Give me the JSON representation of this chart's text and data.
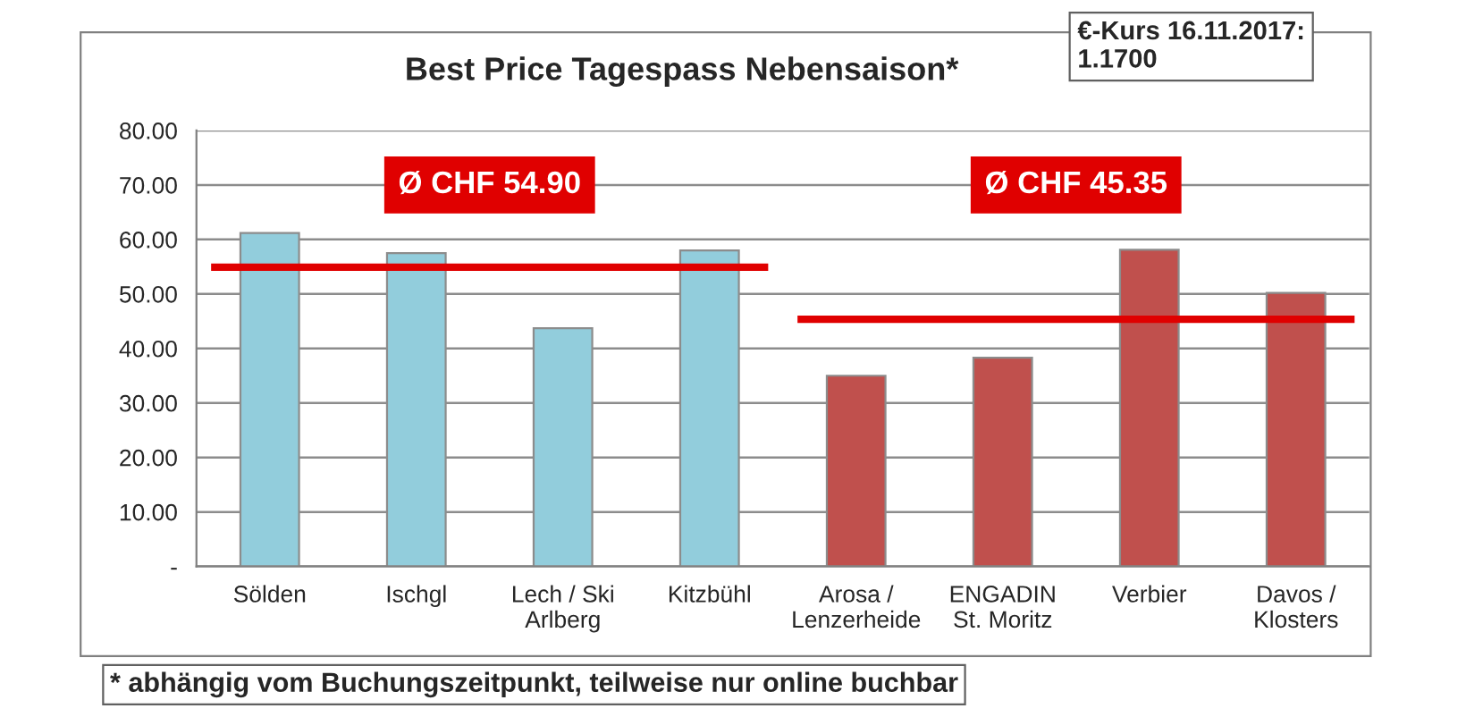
{
  "chart_data": {
    "type": "bar",
    "title": "Best Price Tagespass Nebensaison*",
    "categories": [
      "Sölden",
      "Ischgl",
      "Lech / Ski\nArlberg",
      "Kitzbühl",
      "Arosa /\nLenzerheide",
      "ENGADIN\nSt. Moritz",
      "Verbier",
      "Davos /\nKlosters"
    ],
    "values": [
      61.2,
      57.5,
      43.7,
      58.0,
      35.0,
      38.3,
      58.1,
      50.2
    ],
    "colors": [
      "#92cddc",
      "#92cddc",
      "#92cddc",
      "#92cddc",
      "#c0504d",
      "#c0504d",
      "#c0504d",
      "#c0504d"
    ],
    "ylim": [
      0,
      80
    ],
    "yticks": [
      {
        "value": 0,
        "label": "-"
      },
      {
        "value": 10,
        "label": "10.00"
      },
      {
        "value": 20,
        "label": "20.00"
      },
      {
        "value": 30,
        "label": "30.00"
      },
      {
        "value": 40,
        "label": "40.00"
      },
      {
        "value": 50,
        "label": "50.00"
      },
      {
        "value": 60,
        "label": "60.00"
      },
      {
        "value": 70,
        "label": "70.00"
      },
      {
        "value": 80,
        "label": "80.00"
      }
    ],
    "grid": "y",
    "legend": false,
    "ref_lines": [
      {
        "axis": "y",
        "value": 54.9,
        "color": "#e00000"
      },
      {
        "axis": "y",
        "value": 45.35,
        "color": "#e00000"
      }
    ],
    "annotations": [
      "€-Kurs 16.11.2017:\n1.1700",
      "* abhängig vom Buchungszeitpunkt, teilweise nur online buchbar",
      "Ø CHF 54.90",
      "Ø CHF 45.35"
    ]
  }
}
